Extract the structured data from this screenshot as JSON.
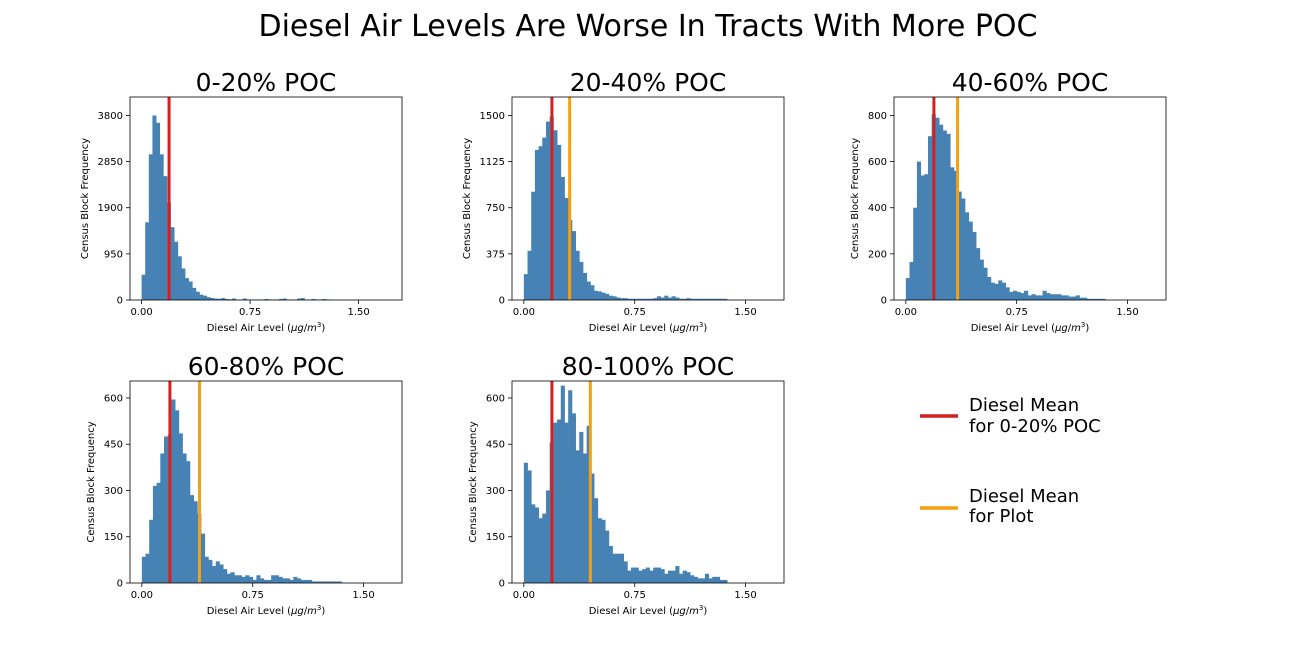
{
  "figure": {
    "title": "Diesel Air Levels Are Worse In Tracts With More POC",
    "bar_color": "#4682b4",
    "ref_color": "#d62020",
    "mean_color": "#f5a010"
  },
  "legend": {
    "items": [
      {
        "line1": "Diesel Mean",
        "line2": "for 0-20% POC",
        "color": "#d62020"
      },
      {
        "line1": "Diesel Mean",
        "line2": "for Plot",
        "color": "#f5a010"
      }
    ]
  },
  "chart_data": [
    {
      "type": "bar",
      "title": "0-20% POC",
      "xlabel": "Diesel Air Level (μg/m³)",
      "ylabel": "Census Block Frequency",
      "xlim": [
        -0.08,
        1.8
      ],
      "ylim": [
        0,
        4180
      ],
      "xticks": [
        "0.00",
        "0.75",
        "1.50"
      ],
      "yticks": [
        "0",
        "950",
        "1900",
        "2850",
        "3800"
      ],
      "bin_start": 0.0,
      "bin_width": 0.025,
      "values": [
        520,
        1600,
        3000,
        3800,
        3650,
        3000,
        2550,
        2000,
        1500,
        1200,
        900,
        650,
        450,
        380,
        250,
        170,
        110,
        90,
        60,
        40,
        30,
        25,
        40,
        20,
        15,
        30,
        10,
        10,
        30,
        10,
        10,
        10,
        10,
        10,
        20,
        10,
        10,
        10,
        20,
        30,
        10,
        10,
        10,
        30,
        40,
        10,
        10,
        20,
        10,
        10,
        20,
        10,
        10
      ],
      "ref_mean": 0.19,
      "plot_mean": null
    },
    {
      "type": "bar",
      "title": "20-40% POC",
      "xlabel": "Diesel Air Level (μg/m³)",
      "ylabel": "Census Block Frequency",
      "xlim": [
        -0.08,
        1.76
      ],
      "ylim": [
        0,
        1650
      ],
      "xticks": [
        "0.00",
        "0.75",
        "1.50"
      ],
      "yticks": [
        "0",
        "375",
        "750",
        "1125",
        "1500"
      ],
      "bin_start": 0.0,
      "bin_width": 0.025,
      "values": [
        210,
        400,
        880,
        1220,
        1250,
        1320,
        1450,
        1490,
        1380,
        1260,
        1000,
        830,
        650,
        560,
        400,
        310,
        220,
        150,
        120,
        75,
        70,
        60,
        50,
        35,
        30,
        20,
        15,
        15,
        10,
        10,
        10,
        10,
        10,
        10,
        10,
        15,
        30,
        20,
        35,
        20,
        30,
        20,
        10,
        10,
        15,
        10,
        10,
        10,
        10,
        10,
        10,
        10,
        10,
        10,
        10
      ],
      "ref_mean": 0.19,
      "plot_mean": 0.31
    },
    {
      "type": "bar",
      "title": "40-60% POC",
      "xlabel": "Diesel Air Level (μg/m³)",
      "ylabel": "Census Block Frequency",
      "xlim": [
        -0.08,
        1.76
      ],
      "ylim": [
        0,
        880
      ],
      "xticks": [
        "0.00",
        "0.75",
        "1.50"
      ],
      "yticks": [
        "0",
        "200",
        "400",
        "600",
        "800"
      ],
      "bin_start": 0.0,
      "bin_width": 0.025,
      "values": [
        95,
        165,
        400,
        600,
        540,
        545,
        710,
        805,
        790,
        760,
        735,
        720,
        575,
        560,
        470,
        440,
        380,
        340,
        295,
        225,
        175,
        140,
        100,
        75,
        70,
        85,
        75,
        55,
        35,
        40,
        35,
        30,
        40,
        20,
        25,
        20,
        20,
        40,
        30,
        25,
        25,
        25,
        20,
        20,
        15,
        15,
        20,
        10,
        10,
        5,
        5,
        5,
        5,
        5
      ],
      "ref_mean": 0.19,
      "plot_mean": 0.35
    },
    {
      "type": "bar",
      "title": "60-80% POC",
      "xlabel": "Diesel Air Level (μg/m³)",
      "ylabel": "Census Block Frequency",
      "xlim": [
        -0.08,
        1.76
      ],
      "ylim": [
        0,
        655
      ],
      "xticks": [
        "0.00",
        "0.75",
        "1.50"
      ],
      "yticks": [
        "0",
        "150",
        "300",
        "450",
        "600"
      ],
      "bin_start": 0.0,
      "bin_width": 0.025,
      "values": [
        85,
        95,
        205,
        315,
        325,
        420,
        475,
        480,
        595,
        560,
        485,
        420,
        395,
        285,
        265,
        225,
        160,
        85,
        75,
        55,
        70,
        60,
        45,
        30,
        35,
        25,
        25,
        20,
        25,
        20,
        10,
        25,
        15,
        10,
        10,
        25,
        25,
        20,
        15,
        15,
        10,
        20,
        15,
        10,
        10,
        10,
        5,
        5,
        5,
        5,
        5,
        5,
        5,
        5
      ],
      "ref_mean": 0.19,
      "plot_mean": 0.39
    },
    {
      "type": "bar",
      "title": "80-100% POC",
      "xlabel": "Diesel Air Level (μg/m³)",
      "ylabel": "Census Block Frequency",
      "xlim": [
        -0.08,
        1.76
      ],
      "ylim": [
        0,
        655
      ],
      "xticks": [
        "0.00",
        "0.75",
        "1.50"
      ],
      "yticks": [
        "0",
        "150",
        "300",
        "450",
        "600"
      ],
      "bin_start": 0.0,
      "bin_width": 0.025,
      "values": [
        390,
        365,
        255,
        245,
        210,
        225,
        300,
        455,
        520,
        530,
        640,
        520,
        625,
        550,
        430,
        490,
        420,
        510,
        355,
        275,
        210,
        205,
        170,
        120,
        95,
        95,
        95,
        70,
        40,
        50,
        50,
        40,
        45,
        50,
        40,
        50,
        50,
        45,
        30,
        40,
        40,
        55,
        30,
        40,
        35,
        25,
        20,
        15,
        15,
        30,
        15,
        20,
        20,
        10,
        10
      ],
      "ref_mean": 0.19,
      "plot_mean": 0.45
    }
  ]
}
